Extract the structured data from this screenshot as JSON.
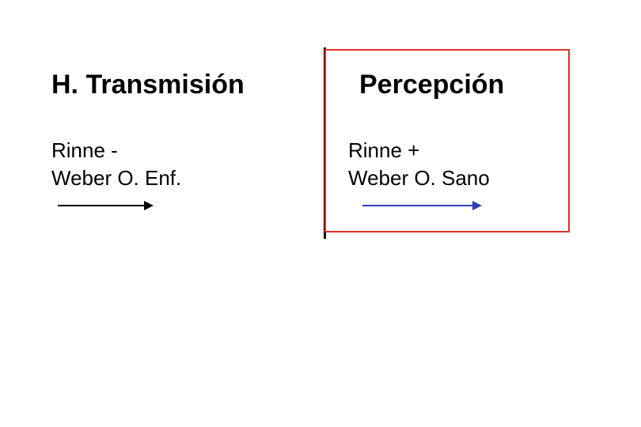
{
  "left": {
    "title": "H. Transmisión",
    "line1": "Rinne  -",
    "line2": "Weber  O. Enf.",
    "arrow": {
      "color": "#000000",
      "length": 110,
      "x": 8
    }
  },
  "right": {
    "title": "Percepción",
    "line1": "Rinne  +",
    "line2": "Weber O. Sano",
    "arrow": {
      "color": "#2e3fbf",
      "length": 140,
      "x": 18
    }
  },
  "divider_color": "#000000",
  "box_border_color": "#d93026",
  "background": "#ffffff",
  "title_fontsize": 34,
  "body_fontsize": 26
}
